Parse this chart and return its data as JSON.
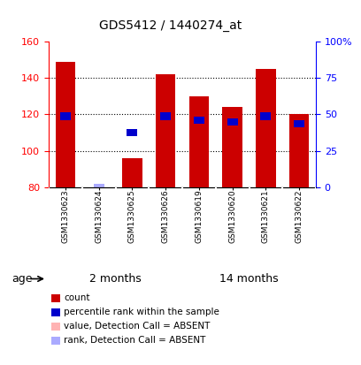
{
  "title": "GDS5412 / 1440274_at",
  "samples": [
    "GSM1330623",
    "GSM1330624",
    "GSM1330625",
    "GSM1330626",
    "GSM1330619",
    "GSM1330620",
    "GSM1330621",
    "GSM1330622"
  ],
  "count_values": [
    149,
    80,
    96,
    142,
    130,
    124,
    145,
    120
  ],
  "percentile_values": [
    119,
    80,
    110,
    119,
    117,
    116,
    119,
    115
  ],
  "absent_mask": [
    false,
    true,
    false,
    false,
    false,
    false,
    false,
    false
  ],
  "ylim": [
    80,
    160
  ],
  "y_ticks_left": [
    80,
    100,
    120,
    140,
    160
  ],
  "right_axis_values": [
    80,
    100,
    120,
    140,
    160
  ],
  "right_axis_labels": [
    "0",
    "25",
    "50",
    "75",
    "100%"
  ],
  "groups": [
    {
      "label": "2 months",
      "start": 0,
      "end": 3
    },
    {
      "label": "14 months",
      "start": 4,
      "end": 7
    }
  ],
  "bar_color_present": "#cc0000",
  "bar_color_absent": "#ffb3b3",
  "percentile_color_present": "#0000cc",
  "percentile_color_absent": "#aaaaff",
  "bar_width": 0.6,
  "group_bar_color": "#90ee90",
  "sample_area_color": "#d3d3d3",
  "background_color": "#ffffff",
  "age_label": "age",
  "legend_items": [
    {
      "color": "#cc0000",
      "label": "count"
    },
    {
      "color": "#0000cc",
      "label": "percentile rank within the sample"
    },
    {
      "color": "#ffb3b3",
      "label": "value, Detection Call = ABSENT"
    },
    {
      "color": "#aaaaff",
      "label": "rank, Detection Call = ABSENT"
    }
  ]
}
